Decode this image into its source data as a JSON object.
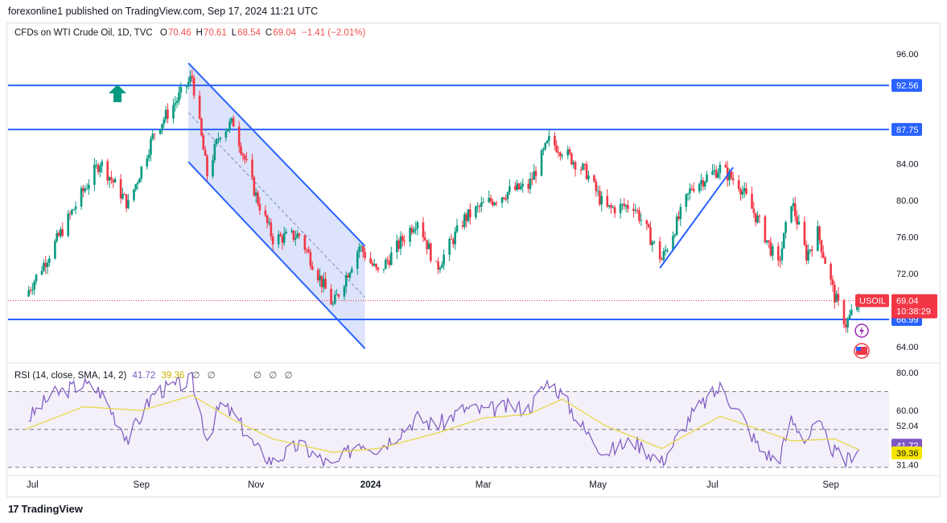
{
  "publisher": "forexonline1 published on TradingView.com, Sep 17, 2024 11:21 UTC",
  "symbol_title": "CFDs on WTI Crude Oil, 1D, TVC",
  "ohlc": [
    {
      "k": "O",
      "v": "70.46"
    },
    {
      "k": "H",
      "v": "70.61"
    },
    {
      "k": "L",
      "v": "68.54"
    },
    {
      "k": "C",
      "v": "69.04"
    },
    {
      "k": "",
      "v": "−1.41 (−2.01%)"
    }
  ],
  "rsi_legend": {
    "title": "RSI (14, close, SMA, 14, 2)",
    "rsi": "41.72",
    "sma": "39.36",
    "na_icons": [
      "∅",
      "∅",
      "∅",
      "∅",
      "∅"
    ]
  },
  "colors": {
    "up": "#089981",
    "down": "#f23645",
    "line": "#2962ff",
    "rsi": "#7e57c2",
    "rsi_sma": "#e8d640",
    "channel_fill": "#d6def9"
  },
  "price_axis": [
    "96.00",
    "84.00",
    "80.00",
    "76.00",
    "72.00",
    "64.00"
  ],
  "price_tags": [
    {
      "label": "92.56",
      "value": 92.56,
      "color": "#2962ff"
    },
    {
      "label": "87.75",
      "value": 87.75,
      "color": "#2962ff"
    },
    {
      "label": "66.99",
      "value": 66.99,
      "color": "#2962ff"
    }
  ],
  "last_price": {
    "symbol": "USOIL",
    "price": "69.04",
    "countdown": "10:38:29",
    "value": 69.04,
    "color": "#f23645"
  },
  "rsi_axis": [
    "80.00",
    "60.00",
    "52.04",
    "31.40"
  ],
  "rsi_tags": [
    {
      "label": "41.72",
      "value": 41.72,
      "color": "#7e57c2"
    },
    {
      "label": "39.36",
      "value": 39.36,
      "color": "#f5e600"
    }
  ],
  "time_axis": [
    "Jul",
    "Sep",
    "Nov",
    "2024",
    "Mar",
    "May",
    "Jul",
    "Sep"
  ],
  "branding": "TradingView",
  "chart_data": {
    "type": "candlestick",
    "title": "CFDs on WTI Crude Oil, 1D, TVC",
    "price_range": [
      62.5,
      97.5
    ],
    "rsi_range": [
      27,
      83
    ],
    "horizontal_levels": [
      92.56,
      87.75,
      66.99
    ],
    "series": [
      {
        "name": "Price",
        "points": [
          [
            "2023-07-01",
            69.5
          ],
          [
            "2023-07-15",
            74.5
          ],
          [
            "2023-08-01",
            81.0
          ],
          [
            "2023-08-10",
            84.2
          ],
          [
            "2023-08-25",
            79.5
          ],
          [
            "2023-09-08",
            87.5
          ],
          [
            "2023-09-20",
            91.0
          ],
          [
            "2023-09-28",
            93.5
          ],
          [
            "2023-10-06",
            82.8
          ],
          [
            "2023-10-13",
            87.5
          ],
          [
            "2023-10-20",
            88.5
          ],
          [
            "2023-11-01",
            80.5
          ],
          [
            "2023-11-10",
            75.8
          ],
          [
            "2023-11-24",
            76.2
          ],
          [
            "2023-12-12",
            68.5
          ],
          [
            "2023-12-26",
            75.0
          ],
          [
            "2024-01-05",
            72.0
          ],
          [
            "2024-01-26",
            78.0
          ],
          [
            "2024-02-05",
            72.5
          ],
          [
            "2024-02-20",
            78.0
          ],
          [
            "2024-03-01",
            79.5
          ],
          [
            "2024-03-15",
            81.0
          ],
          [
            "2024-03-25",
            81.5
          ],
          [
            "2024-04-05",
            86.5
          ],
          [
            "2024-04-12",
            85.5
          ],
          [
            "2024-04-25",
            83.0
          ],
          [
            "2024-05-05",
            79.0
          ],
          [
            "2024-05-20",
            79.5
          ],
          [
            "2024-06-04",
            73.5
          ],
          [
            "2024-06-20",
            81.5
          ],
          [
            "2024-07-05",
            83.5
          ],
          [
            "2024-07-15",
            81.8
          ],
          [
            "2024-07-26",
            77.5
          ],
          [
            "2024-08-05",
            72.8
          ],
          [
            "2024-08-12",
            80.0
          ],
          [
            "2024-08-20",
            74.0
          ],
          [
            "2024-08-26",
            76.5
          ],
          [
            "2024-09-04",
            69.5
          ],
          [
            "2024-09-10",
            66.5
          ],
          [
            "2024-09-17",
            69.04
          ]
        ]
      },
      {
        "name": "RSI",
        "points": [
          [
            "2023-07-01",
            54
          ],
          [
            "2023-07-15",
            68
          ],
          [
            "2023-08-01",
            74
          ],
          [
            "2023-08-10",
            70
          ],
          [
            "2023-08-25",
            45
          ],
          [
            "2023-09-08",
            70
          ],
          [
            "2023-09-20",
            73
          ],
          [
            "2023-09-28",
            76
          ],
          [
            "2023-10-06",
            45
          ],
          [
            "2023-10-13",
            63
          ],
          [
            "2023-10-20",
            58
          ],
          [
            "2023-11-01",
            40
          ],
          [
            "2023-11-10",
            33
          ],
          [
            "2023-11-24",
            42
          ],
          [
            "2023-12-12",
            30
          ],
          [
            "2023-12-26",
            44
          ],
          [
            "2024-01-05",
            40
          ],
          [
            "2024-01-26",
            56
          ],
          [
            "2024-02-05",
            52
          ],
          [
            "2024-02-20",
            61
          ],
          [
            "2024-03-01",
            60
          ],
          [
            "2024-03-15",
            62
          ],
          [
            "2024-03-25",
            61
          ],
          [
            "2024-04-05",
            76
          ],
          [
            "2024-04-12",
            68
          ],
          [
            "2024-04-25",
            48
          ],
          [
            "2024-05-05",
            38
          ],
          [
            "2024-05-20",
            44
          ],
          [
            "2024-06-04",
            33
          ],
          [
            "2024-06-20",
            58
          ],
          [
            "2024-07-05",
            72
          ],
          [
            "2024-07-15",
            60
          ],
          [
            "2024-07-26",
            40
          ],
          [
            "2024-08-05",
            33
          ],
          [
            "2024-08-12",
            55
          ],
          [
            "2024-08-20",
            45
          ],
          [
            "2024-08-26",
            53
          ],
          [
            "2024-09-04",
            38
          ],
          [
            "2024-09-10",
            33
          ],
          [
            "2024-09-17",
            41.72
          ]
        ]
      },
      {
        "name": "RSI-based MA",
        "points": [
          [
            "2023-07-01",
            50
          ],
          [
            "2023-08-01",
            62
          ],
          [
            "2023-09-01",
            60
          ],
          [
            "2023-09-28",
            68
          ],
          [
            "2023-10-20",
            55
          ],
          [
            "2023-11-10",
            45
          ],
          [
            "2023-12-12",
            38
          ],
          [
            "2024-01-05",
            40
          ],
          [
            "2024-02-05",
            48
          ],
          [
            "2024-03-01",
            56
          ],
          [
            "2024-03-25",
            58
          ],
          [
            "2024-04-12",
            66
          ],
          [
            "2024-05-05",
            52
          ],
          [
            "2024-06-04",
            40
          ],
          [
            "2024-07-05",
            57
          ],
          [
            "2024-07-26",
            50
          ],
          [
            "2024-08-12",
            44
          ],
          [
            "2024-09-04",
            45
          ],
          [
            "2024-09-17",
            39.36
          ]
        ]
      }
    ],
    "trendlines": [
      {
        "from": [
          "2023-09-26",
          95.0
        ],
        "to": [
          "2023-12-29",
          75.0
        ]
      },
      {
        "from": [
          "2023-09-26",
          84.2
        ],
        "to": [
          "2023-12-29",
          63.8
        ]
      },
      {
        "from": [
          "2024-06-03",
          72.6
        ],
        "to": [
          "2024-07-12",
          83.6
        ]
      }
    ]
  }
}
